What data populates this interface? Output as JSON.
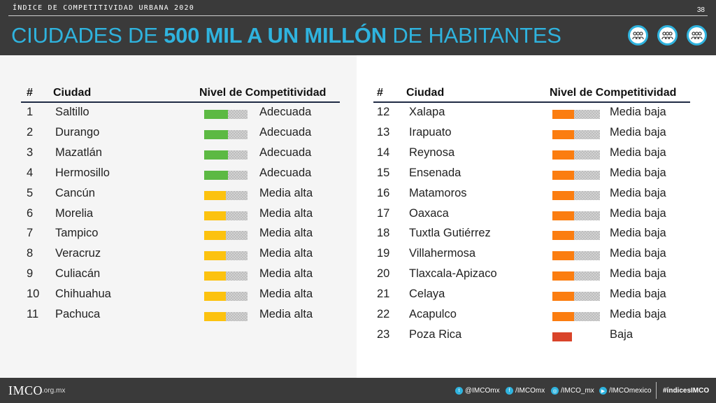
{
  "header": {
    "kicker": "ÍNDICE DE COMPETITIVIDAD URBANA 2020",
    "page_number": "38",
    "title_pre": "CIUDADES DE ",
    "title_bold": "500 MIL A UN MILLÓN",
    "title_post": " DE HABITANTES",
    "icons": [
      "people-group-icon",
      "people-group-icon",
      "people-group-icon"
    ]
  },
  "columns": {
    "rank": "#",
    "city": "Ciudad",
    "level": "Nivel de Competitividad"
  },
  "colors": {
    "Adecuada": "#5cb943",
    "Media alta": "#fcc20f",
    "Media baja": "#fb7d10",
    "Baja": "#d9442a",
    "accent": "#2fb3de"
  },
  "levels": {
    "Adecuada": 0.55,
    "Media alta": 0.5,
    "Media baja": 0.45,
    "Baja": 0.4
  },
  "table_left": [
    {
      "rank": "1",
      "city": "Saltillo",
      "level": "Adecuada"
    },
    {
      "rank": "2",
      "city": "Durango",
      "level": "Adecuada"
    },
    {
      "rank": "3",
      "city": "Mazatlán",
      "level": "Adecuada"
    },
    {
      "rank": "4",
      "city": "Hermosillo",
      "level": "Adecuada"
    },
    {
      "rank": "5",
      "city": "Cancún",
      "level": "Media alta"
    },
    {
      "rank": "6",
      "city": "Morelia",
      "level": "Media alta"
    },
    {
      "rank": "7",
      "city": "Tampico",
      "level": "Media alta"
    },
    {
      "rank": "8",
      "city": "Veracruz",
      "level": "Media alta"
    },
    {
      "rank": "9",
      "city": "Culiacán",
      "level": "Media alta"
    },
    {
      "rank": "10",
      "city": "Chihuahua",
      "level": "Media alta"
    },
    {
      "rank": "11",
      "city": "Pachuca",
      "level": "Media alta"
    }
  ],
  "table_right": [
    {
      "rank": "12",
      "city": "Xalapa",
      "level": "Media baja"
    },
    {
      "rank": "13",
      "city": "Irapuato",
      "level": "Media baja"
    },
    {
      "rank": "14",
      "city": "Reynosa",
      "level": "Media baja"
    },
    {
      "rank": "15",
      "city": "Ensenada",
      "level": "Media baja"
    },
    {
      "rank": "16",
      "city": "Matamoros",
      "level": "Media baja"
    },
    {
      "rank": "17",
      "city": "Oaxaca",
      "level": "Media baja"
    },
    {
      "rank": "18",
      "city": "Tuxtla Gutiérrez",
      "level": "Media baja"
    },
    {
      "rank": "19",
      "city": "Villahermosa",
      "level": "Media baja"
    },
    {
      "rank": "20",
      "city": "Tlaxcala-Apizaco",
      "level": "Media baja"
    },
    {
      "rank": "21",
      "city": "Celaya",
      "level": "Media baja"
    },
    {
      "rank": "22",
      "city": "Acapulco",
      "level": "Media baja"
    },
    {
      "rank": "23",
      "city": "Poza Rica",
      "level": "Baja"
    }
  ],
  "footer": {
    "logo": "IMCO",
    "domain": ".org.mx",
    "twitter": "@IMCOmx",
    "facebook": "/IMCOmx",
    "instagram": "/IMCO_mx",
    "youtube": "/IMCOmexico",
    "hashtag": "#índicesIMCO"
  }
}
